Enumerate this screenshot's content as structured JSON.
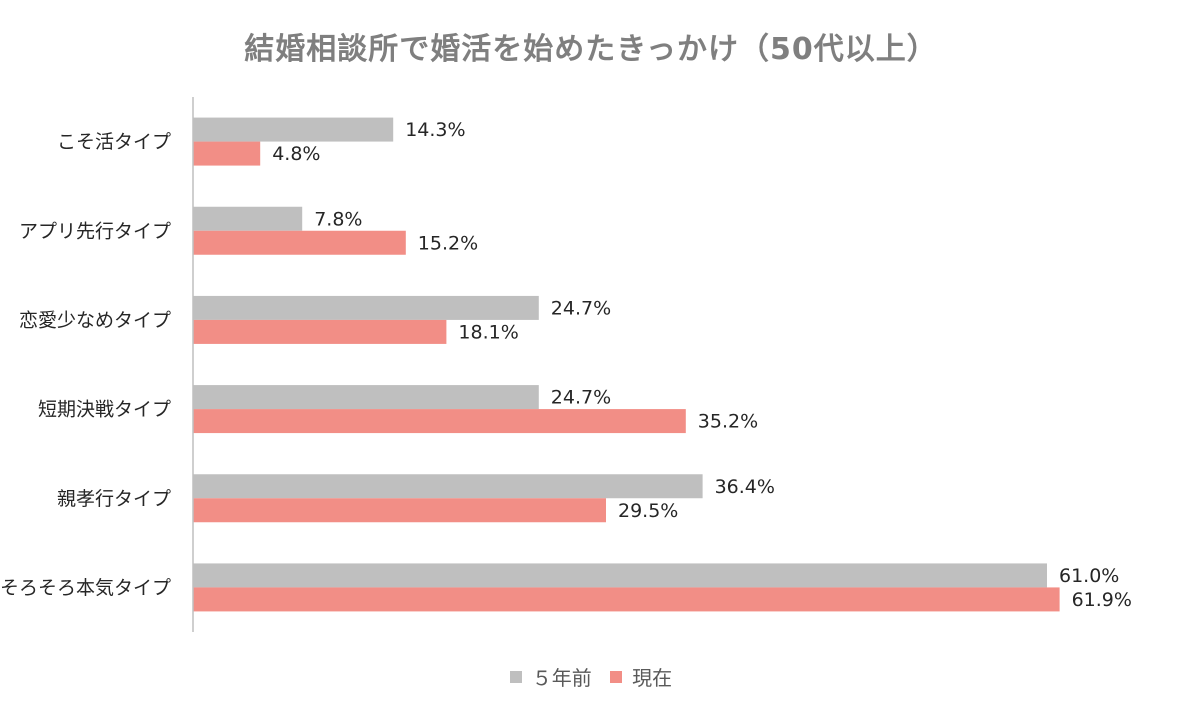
{
  "chart_data": {
    "type": "bar",
    "orientation": "horizontal",
    "title": "結婚相談所で婚活を始めたきっかけ（50代以上）",
    "categories": [
      "こそ活タイプ",
      "アプリ先行タイプ",
      "恋愛少なめタイプ",
      "短期決戦タイプ",
      "親孝行タイプ",
      "そろそろ本気タイプ"
    ],
    "series": [
      {
        "name": "５年前",
        "color": "#bfbfbf",
        "values": [
          14.3,
          7.8,
          24.7,
          24.7,
          36.4,
          61.0
        ],
        "labels": [
          "14.3%",
          "7.8%",
          "24.7%",
          "24.7%",
          "36.4%",
          "61.0%"
        ]
      },
      {
        "name": "現在",
        "color": "#f28e86",
        "values": [
          4.8,
          15.2,
          18.1,
          35.2,
          29.5,
          61.9
        ],
        "labels": [
          "4.8%",
          "15.2%",
          "18.1%",
          "35.2%",
          "29.5%",
          "61.9%"
        ]
      }
    ],
    "xlim": [
      0,
      70
    ],
    "grid": false,
    "legend": "bottom"
  }
}
